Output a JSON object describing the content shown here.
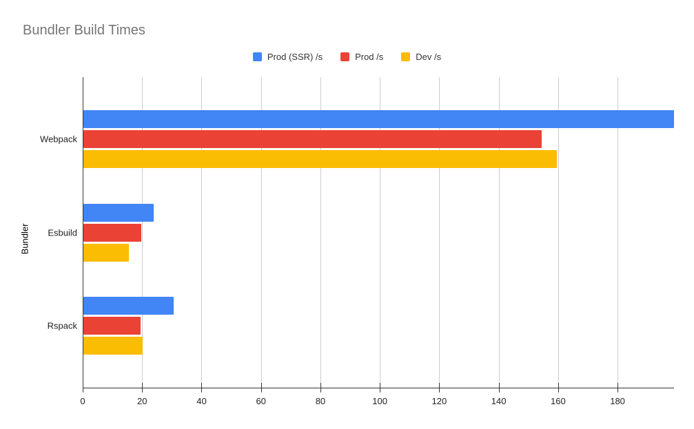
{
  "chart_data": {
    "type": "bar",
    "orientation": "horizontal",
    "title": "Bundler Build Times",
    "xlabel": "",
    "ylabel": "Bundler",
    "categories": [
      "Webpack",
      "Esbuild",
      "Rspack"
    ],
    "series": [
      {
        "name": "Prod (SSR) /s",
        "color": "#4285F4",
        "values": [
          198.8,
          23.7,
          30.3
        ]
      },
      {
        "name": "Prod /s",
        "color": "#EA4335",
        "values": [
          154.2,
          19.5,
          19.2
        ]
      },
      {
        "name": "Dev /s",
        "color": "#FBBC04",
        "values": [
          159.3,
          15.3,
          20.0
        ]
      }
    ],
    "x_ticks": [
      0,
      20,
      40,
      60,
      80,
      100,
      120,
      140,
      160,
      180
    ],
    "xlim": [
      0,
      199
    ],
    "grid": true,
    "legend_position": "top",
    "colors": {
      "background": "#FFFFFF",
      "title_text": "#757575",
      "axis_line": "#333333",
      "gridline": "#CCCCCC",
      "axis_text": "#222222"
    }
  }
}
